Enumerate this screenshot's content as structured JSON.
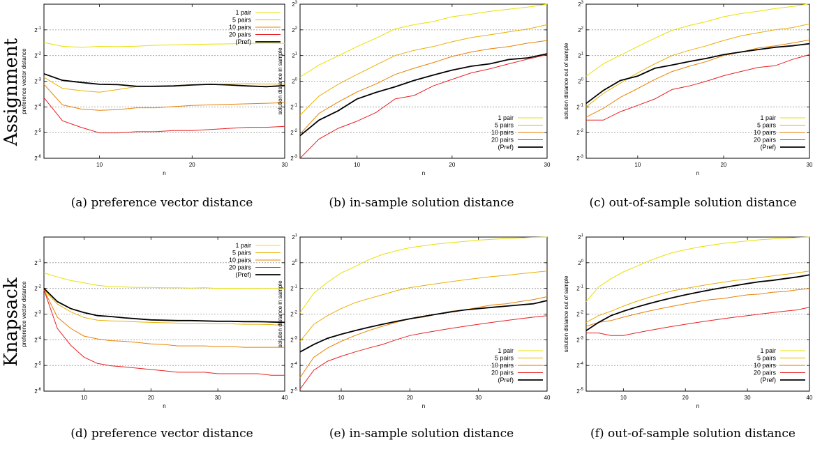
{
  "rows": [
    {
      "label": "Assignment"
    },
    {
      "label": "Knapsack"
    }
  ],
  "legend_entries": [
    "1 pair",
    "5 pairs",
    "10 pairs",
    "20 pairs",
    "(Pref)"
  ],
  "colors": {
    "1 pair": "#e8e000",
    "5 pairs": "#e8b000",
    "10 pairs": "#e88000",
    "20 pairs": "#e82020",
    "(Pref)": "#000000"
  },
  "chart_data": [
    {
      "id": "a",
      "type": "line",
      "caption": "(a) preference vector distance",
      "xlabel": "n",
      "ylabel": "preference vector distance",
      "xlim": [
        4,
        30
      ],
      "xticks": [
        10,
        20,
        30
      ],
      "yscale": "log2",
      "ylim_exp": [
        -6,
        0
      ],
      "yticks_exp": [
        -1,
        -2,
        -3,
        -4,
        -5,
        -6
      ],
      "dashed_grid_exp": [
        -1,
        -2,
        -3,
        -4,
        -5
      ],
      "x": [
        4,
        6,
        8,
        10,
        12,
        14,
        16,
        18,
        20,
        22,
        24,
        26,
        28,
        30
      ],
      "series": [
        {
          "name": "1 pair",
          "values": [
            0.355,
            0.321,
            0.312,
            0.32,
            0.318,
            0.322,
            0.33,
            0.333,
            0.337,
            0.34,
            0.343,
            0.346,
            0.35,
            0.347
          ]
        },
        {
          "name": "5 pairs",
          "values": [
            0.139,
            0.103,
            0.097,
            0.093,
            0.1,
            0.108,
            0.11,
            0.111,
            0.114,
            0.114,
            0.116,
            0.117,
            0.116,
            0.116
          ]
        },
        {
          "name": "10 pairs",
          "values": [
            0.115,
            0.066,
            0.059,
            0.057,
            0.058,
            0.061,
            0.061,
            0.063,
            0.065,
            0.066,
            0.067,
            0.068,
            0.069,
            0.07
          ]
        },
        {
          "name": "20 pairs",
          "values": [
            0.08,
            0.043,
            0.036,
            0.031,
            0.031,
            0.032,
            0.032,
            0.033,
            0.033,
            0.034,
            0.035,
            0.036,
            0.036,
            0.037
          ]
        },
        {
          "name": "(Pref)",
          "values": [
            0.153,
            0.128,
            0.121,
            0.115,
            0.114,
            0.109,
            0.109,
            0.11,
            0.113,
            0.115,
            0.113,
            0.11,
            0.108,
            0.111
          ]
        }
      ]
    },
    {
      "id": "b",
      "type": "line",
      "caption": "(b) in-sample solution distance",
      "xlabel": "n",
      "ylabel": "solution distance in sample",
      "xlim": [
        4,
        30
      ],
      "xticks": [
        10,
        20,
        30
      ],
      "yscale": "log2",
      "ylim_exp": [
        -3,
        3
      ],
      "yticks_exp": [
        3,
        2,
        1,
        0,
        -1,
        -2,
        -3
      ],
      "dashed_grid_exp": [
        3,
        2,
        1,
        0,
        -1,
        -2
      ],
      "x": [
        4,
        6,
        8,
        10,
        12,
        14,
        16,
        18,
        20,
        22,
        24,
        26,
        28,
        30
      ],
      "series": [
        {
          "name": "1 pair",
          "values": [
            1.12,
            1.55,
            1.98,
            2.55,
            3.2,
            4.1,
            4.6,
            5.0,
            5.7,
            6.1,
            6.6,
            7.0,
            7.4,
            8.0
          ]
        },
        {
          "name": "5 pairs",
          "values": [
            0.4,
            0.67,
            0.92,
            1.2,
            1.55,
            2.0,
            2.3,
            2.55,
            2.9,
            3.25,
            3.5,
            3.8,
            4.1,
            4.6
          ]
        },
        {
          "name": "10 pairs",
          "values": [
            0.24,
            0.42,
            0.57,
            0.75,
            0.93,
            1.2,
            1.42,
            1.65,
            1.95,
            2.2,
            2.4,
            2.55,
            2.8,
            3.0
          ]
        },
        {
          "name": "20 pairs",
          "values": [
            0.125,
            0.21,
            0.28,
            0.34,
            0.43,
            0.62,
            0.68,
            0.88,
            1.05,
            1.25,
            1.4,
            1.6,
            1.82,
            2.05
          ]
        },
        {
          "name": "(Pref)",
          "values": [
            0.23,
            0.35,
            0.45,
            0.62,
            0.74,
            0.86,
            1.02,
            1.18,
            1.35,
            1.5,
            1.6,
            1.8,
            1.88,
            2.1
          ]
        }
      ]
    },
    {
      "id": "c",
      "type": "line",
      "caption": "(c) out-of-sample solution distance",
      "xlabel": "n",
      "ylabel": "solution distance out of sample",
      "xlim": [
        4,
        30
      ],
      "xticks": [
        10,
        20,
        30
      ],
      "yscale": "log2",
      "ylim_exp": [
        -3,
        3
      ],
      "yticks_exp": [
        3,
        2,
        1,
        0,
        -1,
        -2,
        -3
      ],
      "dashed_grid_exp": [
        3,
        2,
        1,
        0,
        -1,
        -2
      ],
      "x": [
        4,
        6,
        8,
        10,
        12,
        14,
        16,
        18,
        20,
        22,
        24,
        26,
        28,
        30
      ],
      "series": [
        {
          "name": "1 pair",
          "values": [
            1.15,
            1.6,
            2.02,
            2.55,
            3.2,
            3.95,
            4.5,
            5.0,
            5.7,
            6.2,
            6.6,
            7.1,
            7.5,
            8.1
          ]
        },
        {
          "name": "5 pairs",
          "values": [
            0.5,
            0.72,
            0.95,
            1.25,
            1.6,
            2.0,
            2.3,
            2.6,
            3.0,
            3.4,
            3.7,
            4.0,
            4.25,
            4.7
          ]
        },
        {
          "name": "10 pairs",
          "values": [
            0.38,
            0.48,
            0.65,
            0.82,
            1.05,
            1.3,
            1.5,
            1.7,
            2.0,
            2.2,
            2.45,
            2.6,
            2.8,
            3.05
          ]
        },
        {
          "name": "20 pairs",
          "values": [
            0.35,
            0.35,
            0.44,
            0.52,
            0.62,
            0.8,
            0.88,
            1.0,
            1.16,
            1.3,
            1.45,
            1.52,
            1.8,
            2.05
          ]
        },
        {
          "name": "(Pref)",
          "values": [
            0.55,
            0.78,
            1.02,
            1.15,
            1.42,
            1.55,
            1.7,
            1.85,
            2.05,
            2.2,
            2.35,
            2.5,
            2.6,
            2.75
          ]
        }
      ]
    },
    {
      "id": "d",
      "type": "line",
      "caption": "(d) preference vector distance",
      "xlabel": "n",
      "ylabel": "preference vector distance",
      "xlim": [
        4,
        40
      ],
      "xticks": [
        10,
        20,
        30,
        40
      ],
      "yscale": "log2",
      "ylim_exp": [
        -6,
        0
      ],
      "yticks_exp": [
        -1,
        -2,
        -3,
        -4,
        -5,
        -6
      ],
      "dashed_grid_exp": [
        -1,
        -2,
        -3,
        -4,
        -5
      ],
      "x": [
        4,
        6,
        8,
        10,
        12,
        14,
        16,
        18,
        20,
        22,
        24,
        26,
        28,
        30,
        32,
        34,
        36,
        38,
        40
      ],
      "series": [
        {
          "name": "1 pair",
          "values": [
            0.38,
            0.34,
            0.31,
            0.29,
            0.272,
            0.263,
            0.26,
            0.257,
            0.257,
            0.254,
            0.254,
            0.252,
            0.255,
            0.25,
            0.251,
            0.25,
            0.25,
            0.249,
            0.249
          ]
        },
        {
          "name": "5 pairs",
          "values": [
            0.24,
            0.164,
            0.133,
            0.114,
            0.106,
            0.104,
            0.103,
            0.101,
            0.1,
            0.099,
            0.098,
            0.097,
            0.097,
            0.096,
            0.096,
            0.095,
            0.095,
            0.094,
            0.092
          ]
        },
        {
          "name": "10 pairs",
          "values": [
            0.24,
            0.115,
            0.085,
            0.069,
            0.064,
            0.061,
            0.06,
            0.058,
            0.056,
            0.055,
            0.053,
            0.053,
            0.053,
            0.052,
            0.052,
            0.051,
            0.051,
            0.051,
            0.051
          ]
        },
        {
          "name": "20 pairs",
          "values": [
            0.24,
            0.085,
            0.054,
            0.039,
            0.033,
            0.031,
            0.03,
            0.029,
            0.028,
            0.027,
            0.026,
            0.026,
            0.026,
            0.025,
            0.025,
            0.025,
            0.025,
            0.024,
            0.024
          ]
        },
        {
          "name": "(Pref)",
          "values": [
            0.25,
            0.175,
            0.145,
            0.13,
            0.12,
            0.117,
            0.113,
            0.11,
            0.107,
            0.106,
            0.105,
            0.105,
            0.104,
            0.103,
            0.103,
            0.102,
            0.102,
            0.101,
            0.1
          ]
        }
      ]
    },
    {
      "id": "e",
      "type": "line",
      "caption": "(e) in-sample solution distance",
      "xlabel": "n",
      "ylabel": "solution distance in sample",
      "xlim": [
        4,
        40
      ],
      "xticks": [
        10,
        20,
        30,
        40
      ],
      "yscale": "log2",
      "ylim_exp": [
        -5,
        1
      ],
      "yticks_exp": [
        1,
        0,
        -1,
        -2,
        -3,
        -4,
        -5
      ],
      "dashed_grid_exp": [
        1,
        0,
        -1,
        -2,
        -3,
        -4
      ],
      "x": [
        4,
        6,
        8,
        10,
        12,
        14,
        16,
        18,
        20,
        22,
        24,
        26,
        28,
        30,
        32,
        34,
        36,
        38,
        40
      ],
      "series": [
        {
          "name": "1 pair",
          "values": [
            0.26,
            0.44,
            0.59,
            0.76,
            0.9,
            1.08,
            1.25,
            1.38,
            1.5,
            1.58,
            1.66,
            1.72,
            1.78,
            1.84,
            1.88,
            1.92,
            1.95,
            1.98,
            2.0
          ]
        },
        {
          "name": "5 pairs",
          "values": [
            0.12,
            0.19,
            0.24,
            0.29,
            0.34,
            0.38,
            0.42,
            0.47,
            0.51,
            0.54,
            0.57,
            0.6,
            0.63,
            0.66,
            0.69,
            0.71,
            0.74,
            0.77,
            0.8
          ]
        },
        {
          "name": "10 pairs",
          "values": [
            0.045,
            0.078,
            0.1,
            0.12,
            0.14,
            0.16,
            0.18,
            0.2,
            0.22,
            0.23,
            0.25,
            0.27,
            0.28,
            0.3,
            0.32,
            0.33,
            0.35,
            0.37,
            0.4
          ]
        },
        {
          "name": "20 pairs",
          "values": [
            0.033,
            0.055,
            0.07,
            0.08,
            0.09,
            0.1,
            0.11,
            0.125,
            0.14,
            0.15,
            0.16,
            0.17,
            0.18,
            0.19,
            0.2,
            0.21,
            0.22,
            0.23,
            0.24
          ]
        },
        {
          "name": "(Pref)",
          "values": [
            0.09,
            0.11,
            0.13,
            0.145,
            0.16,
            0.175,
            0.19,
            0.205,
            0.22,
            0.235,
            0.25,
            0.265,
            0.28,
            0.29,
            0.3,
            0.31,
            0.32,
            0.33,
            0.36
          ]
        }
      ]
    },
    {
      "id": "f",
      "type": "line",
      "caption": "(f) out-of-sample solution distance",
      "xlabel": "n",
      "ylabel": "solution distance out of sample",
      "xlim": [
        4,
        40
      ],
      "xticks": [
        10,
        20,
        30,
        40
      ],
      "yscale": "log2",
      "ylim_exp": [
        -5,
        1
      ],
      "yticks_exp": [
        1,
        0,
        -1,
        -2,
        -3,
        -4,
        -5
      ],
      "dashed_grid_exp": [
        1,
        0,
        -1,
        -2,
        -3,
        -4
      ],
      "x": [
        4,
        6,
        8,
        10,
        12,
        14,
        16,
        18,
        20,
        22,
        24,
        26,
        28,
        30,
        32,
        34,
        36,
        38,
        40
      ],
      "series": [
        {
          "name": "1 pair",
          "values": [
            0.35,
            0.52,
            0.65,
            0.78,
            0.9,
            1.04,
            1.18,
            1.32,
            1.42,
            1.52,
            1.6,
            1.68,
            1.74,
            1.8,
            1.86,
            1.9,
            1.94,
            1.97,
            2.0
          ]
        },
        {
          "name": "5 pairs",
          "values": [
            0.2,
            0.24,
            0.27,
            0.31,
            0.35,
            0.39,
            0.43,
            0.47,
            0.5,
            0.53,
            0.56,
            0.59,
            0.62,
            0.64,
            0.67,
            0.7,
            0.73,
            0.76,
            0.8
          ]
        },
        {
          "name": "10 pairs",
          "values": [
            0.18,
            0.2,
            0.21,
            0.23,
            0.25,
            0.27,
            0.29,
            0.31,
            0.33,
            0.35,
            0.37,
            0.38,
            0.4,
            0.42,
            0.43,
            0.45,
            0.46,
            0.48,
            0.5
          ]
        },
        {
          "name": "20 pairs",
          "values": [
            0.15,
            0.15,
            0.14,
            0.14,
            0.15,
            0.16,
            0.17,
            0.18,
            0.19,
            0.2,
            0.21,
            0.22,
            0.23,
            0.24,
            0.25,
            0.26,
            0.27,
            0.28,
            0.3
          ]
        },
        {
          "name": "(Pref)",
          "values": [
            0.16,
            0.2,
            0.24,
            0.27,
            0.3,
            0.33,
            0.36,
            0.39,
            0.42,
            0.45,
            0.48,
            0.51,
            0.54,
            0.57,
            0.6,
            0.62,
            0.65,
            0.68,
            0.72
          ]
        }
      ]
    }
  ]
}
